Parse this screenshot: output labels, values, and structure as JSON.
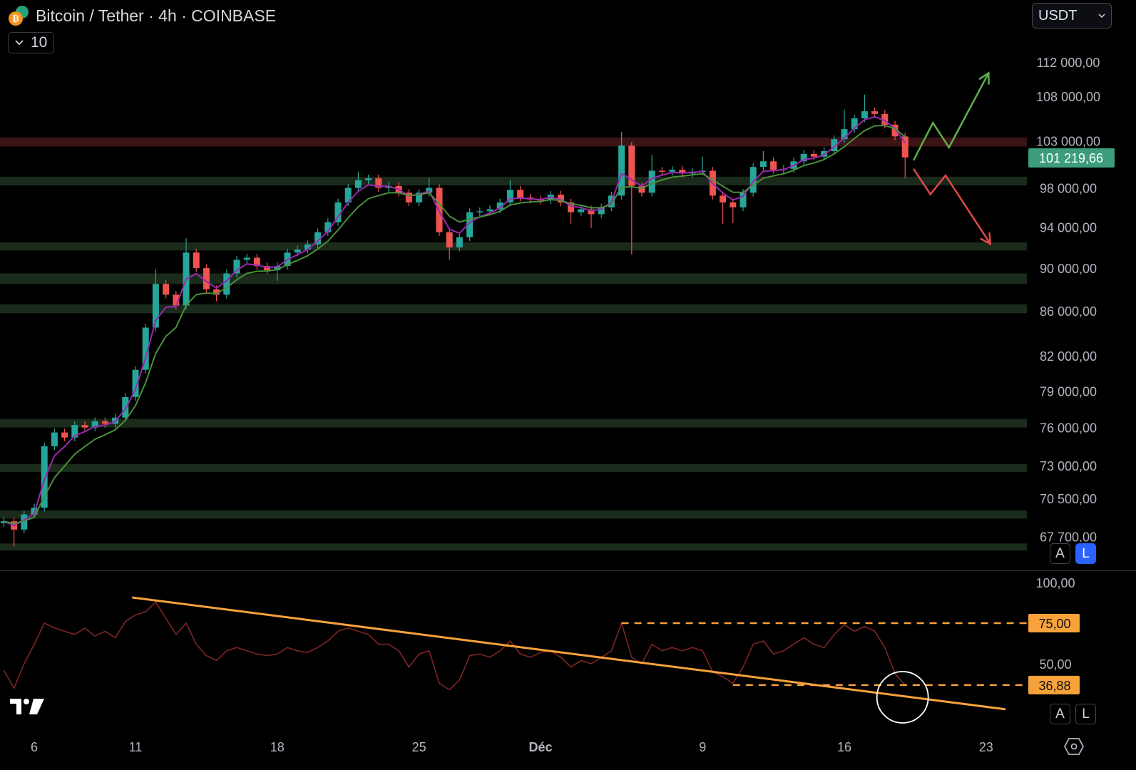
{
  "header": {
    "title": "Bitcoin / Tether · 4h · COINBASE",
    "collapse_count": "10",
    "currency": "USDT",
    "btc_glyph": "₿"
  },
  "buttons": {
    "price_auto": "A",
    "price_log": "L",
    "rsi_auto": "A",
    "rsi_log": "L"
  },
  "icons": [
    "bitcoin-icon",
    "tether-icon",
    "chevron-down-icon",
    "tradingview-logo-icon",
    "settings-icon"
  ],
  "colors": {
    "up": "#26a69a",
    "down": "#ef5350",
    "ema_fast": "#9c27b0",
    "ema_slow": "#4a8f3c",
    "zone_support": "#1b2b1b",
    "zone_resistance": "#3b1416",
    "rsi_line": "#7e2525",
    "rsi_drawing": "#f7a23b",
    "arrow_up": "#5fae4a",
    "arrow_down": "#e04848",
    "last_price_bg": "#3c9c7c",
    "log_button": "#2962ff"
  },
  "chart_data": {
    "type": "candlestick",
    "title": "Bitcoin / Tether · 4h · COINBASE",
    "price_scale": "log",
    "ylim": [
      67000,
      114000
    ],
    "last_price": "101 219,66",
    "price_ticks": [
      {
        "value": 112000,
        "label": "112 000,00"
      },
      {
        "value": 108000,
        "label": "108 000,00"
      },
      {
        "value": 103000,
        "label": "103 000,00"
      },
      {
        "value": 98000,
        "label": "98 000,00"
      },
      {
        "value": 94000,
        "label": "94 000,00"
      },
      {
        "value": 90000,
        "label": "90 000,00"
      },
      {
        "value": 86000,
        "label": "86 000,00"
      },
      {
        "value": 82000,
        "label": "82 000,00"
      },
      {
        "value": 79000,
        "label": "79 000,00"
      },
      {
        "value": 76000,
        "label": "76 000,00"
      },
      {
        "value": 73000,
        "label": "73 000,00"
      },
      {
        "value": 70500,
        "label": "70 500,00"
      },
      {
        "value": 67700,
        "label": "67 700,00"
      }
    ],
    "time_ticks": [
      {
        "date": "11-06 00",
        "label": "6"
      },
      {
        "date": "11-11 00",
        "label": "11"
      },
      {
        "date": "11-18 00",
        "label": "18"
      },
      {
        "date": "11-25 00",
        "label": "25"
      },
      {
        "date": "12-01 00",
        "label": "Déc"
      },
      {
        "date": "12-09 00",
        "label": "9"
      },
      {
        "date": "12-16 00",
        "label": "16"
      },
      {
        "date": "12-23 00",
        "label": "23"
      }
    ],
    "candles_fields": [
      "date",
      "close",
      "rsi",
      "low",
      "high"
    ],
    "candles": [
      [
        "11-04 12",
        68800,
        46
      ],
      [
        "11-05 00",
        68200,
        35,
        67000
      ],
      [
        "11-05 12",
        69300,
        50
      ],
      [
        "11-06 00",
        69800,
        62
      ],
      [
        "11-06 12",
        74500,
        75
      ],
      [
        "11-07 00",
        75600,
        72
      ],
      [
        "11-07 12",
        75200,
        70
      ],
      [
        "11-08 00",
        76200,
        68
      ],
      [
        "11-08 12",
        76000,
        72
      ],
      [
        "11-09 00",
        76500,
        67
      ],
      [
        "11-09 12",
        76300,
        70
      ],
      [
        "11-10 00",
        76800,
        66
      ],
      [
        "11-10 12",
        78500,
        76
      ],
      [
        "11-11 00",
        80800,
        80
      ],
      [
        "11-11 12",
        84500,
        82
      ],
      [
        "11-12 00",
        88500,
        88,
        null,
        89900
      ],
      [
        "11-12 12",
        87500,
        78
      ],
      [
        "11-13 00",
        86500,
        68
      ],
      [
        "11-13 12",
        91500,
        75,
        null,
        92900
      ],
      [
        "11-14 00",
        90000,
        62
      ],
      [
        "11-14 12",
        88000,
        55
      ],
      [
        "11-15 00",
        87500,
        52,
        86900
      ],
      [
        "11-15 12",
        89500,
        58
      ],
      [
        "11-16 00",
        90800,
        60
      ],
      [
        "11-16 12",
        91000,
        58
      ],
      [
        "11-17 00",
        90200,
        56
      ],
      [
        "11-17 12",
        89800,
        55
      ],
      [
        "11-18 00",
        90200,
        56,
        88800
      ],
      [
        "11-18 12",
        91500,
        60
      ],
      [
        "11-19 00",
        91800,
        58
      ],
      [
        "11-19 12",
        92300,
        57
      ],
      [
        "11-20 00",
        93500,
        60
      ],
      [
        "11-20 12",
        94500,
        64
      ],
      [
        "11-21 00",
        96500,
        70
      ],
      [
        "11-21 12",
        98000,
        72
      ],
      [
        "11-22 00",
        98800,
        70,
        null,
        99700
      ],
      [
        "11-22 12",
        99000,
        68
      ],
      [
        "11-23 00",
        98000,
        62
      ],
      [
        "11-23 12",
        98200,
        62
      ],
      [
        "11-24 00",
        97500,
        58
      ],
      [
        "11-24 12",
        96500,
        48
      ],
      [
        "11-25 00",
        97500,
        56
      ],
      [
        "11-25 12",
        98000,
        58,
        null,
        99000
      ],
      [
        "11-26 00",
        93500,
        38
      ],
      [
        "11-26 12",
        92000,
        34,
        90800
      ],
      [
        "11-27 00",
        93000,
        40
      ],
      [
        "11-27 12",
        95500,
        55
      ],
      [
        "11-28 00",
        95600,
        56
      ],
      [
        "11-28 12",
        95800,
        54
      ],
      [
        "11-29 00",
        96500,
        58
      ],
      [
        "11-29 12",
        97800,
        64,
        null,
        98800
      ],
      [
        "11-30 00",
        97000,
        56
      ],
      [
        "11-30 12",
        96800,
        54
      ],
      [
        "12-01 00",
        96700,
        57
      ],
      [
        "12-01 12",
        97300,
        58
      ],
      [
        "12-02 00",
        96500,
        54
      ],
      [
        "12-02 12",
        95500,
        48,
        94300
      ],
      [
        "12-03 00",
        95800,
        52
      ],
      [
        "12-03 12",
        95300,
        50,
        93900
      ],
      [
        "12-04 00",
        96000,
        54
      ],
      [
        "12-04 12",
        97200,
        58
      ],
      [
        "12-05 00",
        102500,
        75,
        null,
        104000
      ],
      [
        "12-05 12",
        98200,
        54,
        91300
      ],
      [
        "12-06 00",
        97500,
        50
      ],
      [
        "12-06 12",
        99800,
        62,
        null,
        101500
      ],
      [
        "12-07 00",
        99700,
        58
      ],
      [
        "12-07 12",
        99900,
        60
      ],
      [
        "12-08 00",
        99500,
        58
      ],
      [
        "12-08 12",
        99700,
        60
      ],
      [
        "12-09 00",
        99800,
        58,
        null,
        101300
      ],
      [
        "12-09 12",
        97200,
        45
      ],
      [
        "12-10 00",
        96500,
        42,
        94300
      ],
      [
        "12-10 12",
        96000,
        38,
        94400
      ],
      [
        "12-11 00",
        97500,
        48
      ],
      [
        "12-11 12",
        100200,
        62
      ],
      [
        "12-12 00",
        100800,
        64,
        null,
        101900
      ],
      [
        "12-12 12",
        99900,
        56
      ],
      [
        "12-13 00",
        100000,
        58
      ],
      [
        "12-13 12",
        100800,
        62
      ],
      [
        "12-14 00",
        101600,
        66
      ],
      [
        "12-14 12",
        101300,
        62
      ],
      [
        "12-15 00",
        101900,
        60
      ],
      [
        "12-15 12",
        103200,
        68
      ],
      [
        "12-16 00",
        104300,
        74,
        null,
        106500
      ],
      [
        "12-16 12",
        105500,
        70
      ],
      [
        "12-17 00",
        106300,
        73,
        null,
        108200
      ],
      [
        "12-17 12",
        106000,
        70
      ],
      [
        "12-18 00",
        104800,
        60
      ],
      [
        "12-18 12",
        103500,
        44
      ],
      [
        "12-19 00",
        101219.66,
        36.88,
        99000
      ]
    ],
    "zones": [
      {
        "type": "resistance",
        "from": 102400,
        "to": 103400
      },
      {
        "type": "support",
        "from": 98260,
        "to": 99170
      },
      {
        "type": "support",
        "from": 91700,
        "to": 92500
      },
      {
        "type": "support",
        "from": 88500,
        "to": 89500
      },
      {
        "type": "support",
        "from": 85800,
        "to": 86600
      },
      {
        "type": "support",
        "from": 76000,
        "to": 76700
      },
      {
        "type": "support",
        "from": 72500,
        "to": 73100
      },
      {
        "type": "support",
        "from": 69000,
        "to": 69600
      },
      {
        "type": "support",
        "from": 66700,
        "to": 67200
      }
    ],
    "projections": [
      {
        "direction": "up",
        "points": [
          [
            "12-19 10",
            100900
          ],
          [
            "12-20 09",
            105000
          ],
          [
            "12-21 04",
            102300
          ],
          [
            "12-23 03",
            110700
          ]
        ]
      },
      {
        "direction": "down",
        "points": [
          [
            "12-19 10",
            100000
          ],
          [
            "12-20 06",
            97340
          ],
          [
            "12-21 00",
            99300
          ],
          [
            "12-23 05",
            92350
          ]
        ]
      }
    ],
    "rsi": {
      "ylim": [
        0,
        100
      ],
      "ticks": [
        {
          "value": 100,
          "label": "100,00"
        },
        {
          "value": 50,
          "label": "50,00"
        }
      ],
      "levels": [
        {
          "value": 75,
          "label": "75,00",
          "from": "12-05 00"
        },
        {
          "value": 36.88,
          "label": "36,88",
          "from": "12-10 12"
        }
      ],
      "trendline": [
        [
          "11-10 20",
          90.8
        ],
        [
          "12-23 23",
          22
        ]
      ],
      "highlight_circle": [
        "12-18 21",
        29.4
      ]
    }
  }
}
